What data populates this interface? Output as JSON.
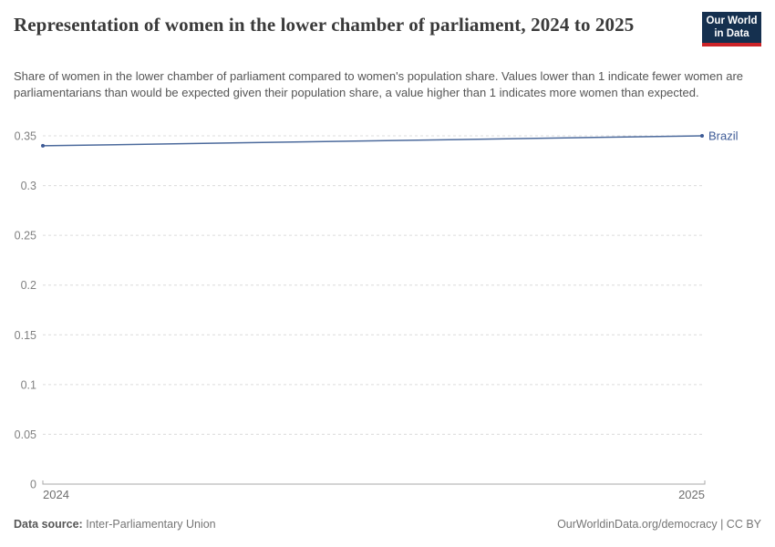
{
  "logo": {
    "line1": "Our World",
    "line2": "in Data",
    "bg_color": "#15304f",
    "accent_color": "#cc2428"
  },
  "chart_data": {
    "type": "line",
    "title": "Representation of women in the lower chamber of parliament, 2024 to 2025",
    "subtitle": "Share of women in the lower chamber of parliament compared to women's population share. Values lower than 1 indicate fewer women are parliamentarians than would be expected given their population share, a value higher than 1 indicates more women than expected.",
    "x": [
      2024,
      2025
    ],
    "series": [
      {
        "name": "Brazil",
        "values": [
          0.34,
          0.35
        ],
        "color": "#4c6a9c",
        "label_color": "#3d5a96"
      }
    ],
    "xlabel": "",
    "ylabel": "",
    "ylim": [
      0,
      0.35
    ],
    "yticks": [
      0,
      0.05,
      0.1,
      0.15,
      0.2,
      0.25,
      0.3,
      0.35
    ],
    "xticks": [
      2024,
      2025
    ],
    "grid": "horizontal-dashed",
    "grid_color": "#dcdcdc",
    "axis_color": "#a8a8a8",
    "tick_label_color": "#818181",
    "x_tick_label_color": "#6e6e6e",
    "legend": "end-of-line-label"
  },
  "footer": {
    "source_label": "Data source:",
    "source_value": "Inter-Parliamentary Union",
    "right_text": "OurWorldinData.org/democracy | CC BY"
  }
}
